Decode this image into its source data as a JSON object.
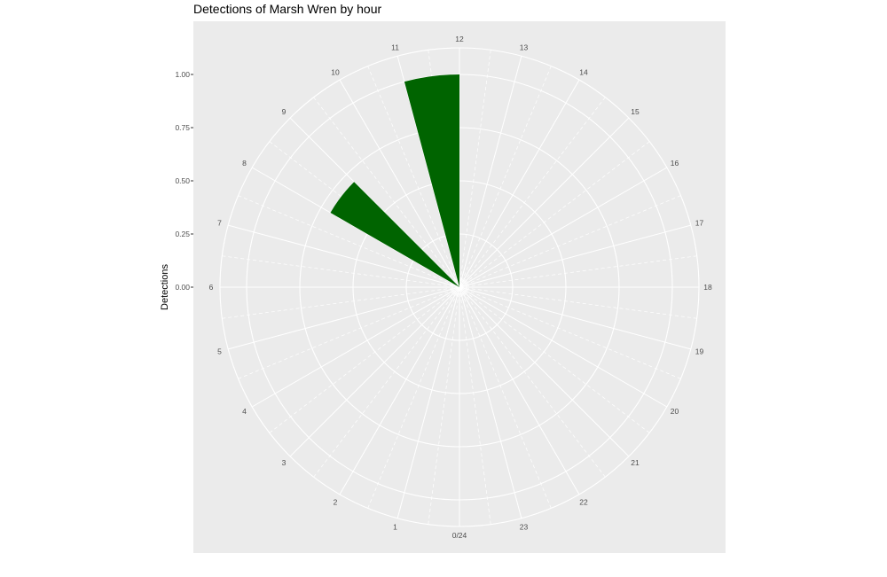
{
  "chart_data": {
    "type": "bar",
    "coord": "polar",
    "title": "Detections of Marsh Wren by hour",
    "xlabel": "",
    "ylabel": "Detections",
    "hour_labels": [
      "0/24",
      "1",
      "2",
      "3",
      "4",
      "5",
      "6",
      "7",
      "8",
      "9",
      "10",
      "11",
      "12",
      "13",
      "14",
      "15",
      "16",
      "17",
      "18",
      "19",
      "20",
      "21",
      "22",
      "23"
    ],
    "y_ticks": [
      "0.00",
      "0.25",
      "0.50",
      "0.75",
      "1.00"
    ],
    "y_tick_values": [
      0,
      0.25,
      0.5,
      0.75,
      1.0
    ],
    "ylim": [
      0,
      1.0
    ],
    "bars": [
      {
        "start_hour": 8,
        "end_hour": 9,
        "value": 0.7
      },
      {
        "start_hour": 11,
        "end_hour": 12,
        "value": 1.0
      }
    ],
    "bar_color": "#006400",
    "panel_color": "#EBEBEB",
    "grid_color": "#FFFFFF",
    "grid": true
  }
}
